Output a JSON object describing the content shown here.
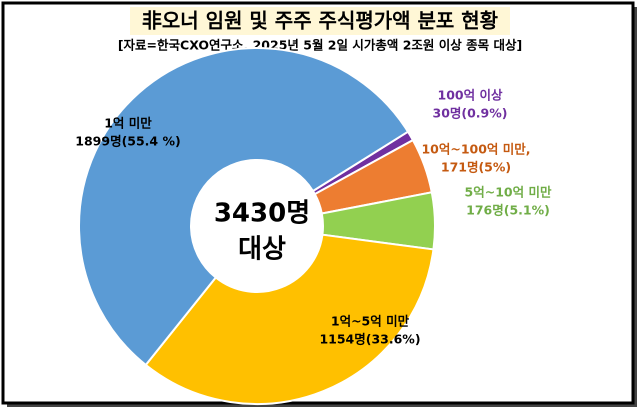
{
  "chart_data": {
    "type": "donut",
    "title": "非오너 임원 및 주주 주식평가액 분포 현황",
    "subtitle": "[자료=한국CXO연구소, 2025년 5월 2일 시가총액 2조원 이상 종목 대상]",
    "center_text": [
      "3430명",
      "대상"
    ],
    "categories": [
      "100억 이상",
      "10억~100억 미만,",
      "5억~10억 미만",
      "1억~5억 미만",
      "1억 미만"
    ],
    "values": [
      30,
      171,
      176,
      1154,
      1899
    ],
    "value_labels": [
      "30명(0.9%)",
      "171명(5%)",
      "176명(5.1%)",
      "1154명(33.6%)",
      "1899명(55.4 %)"
    ],
    "colors": [
      "#7030a0",
      "#ed7d31",
      "#92d050",
      "#ffc000",
      "#5b9bd5"
    ],
    "label_colors": [
      "#7030a0",
      "#c55a11",
      "#70ad47",
      "#000000",
      "#000000"
    ]
  }
}
